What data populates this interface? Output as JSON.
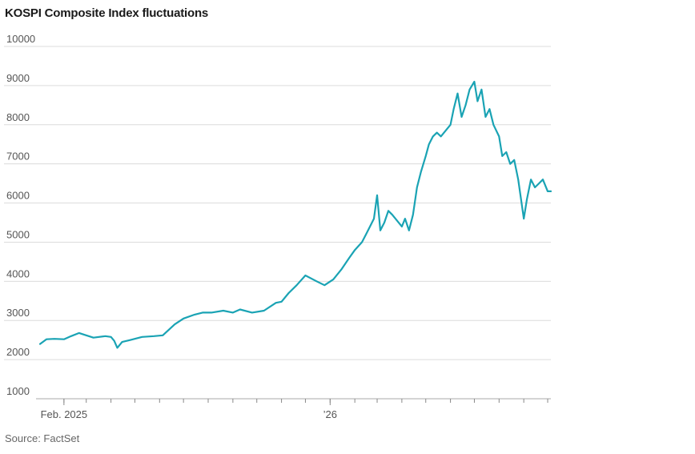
{
  "title": "KOSPI Composite Index fluctuations",
  "source": "Source: FactSet",
  "colors": {
    "line": "#1aa3b4",
    "grid": "#dcdcdc"
  },
  "chart_data": {
    "type": "line",
    "title": "KOSPI Composite Index fluctuations",
    "xlabel": "",
    "ylabel": "",
    "ylim": [
      1000,
      10000
    ],
    "yticks": [
      1000,
      2000,
      3000,
      4000,
      5000,
      6000,
      7000,
      8000,
      9000,
      10000
    ],
    "ytick_labels": [
      "1000",
      "2000",
      "3000",
      "4000",
      "5000",
      "6000",
      "7000",
      "8000",
      "9000",
      "10000"
    ],
    "xlim": [
      "2025-01-02",
      "2026-10-05"
    ],
    "xtick_labels": [
      {
        "date": "2025-02-01",
        "label": "Feb. 2025"
      },
      {
        "date": "2026-01-01",
        "label": "’26"
      }
    ],
    "month_ticks": [
      "2025-02-01",
      "2025-03-01",
      "2025-04-01",
      "2025-05-01",
      "2025-06-01",
      "2025-07-01",
      "2025-08-01",
      "2025-09-01",
      "2025-10-01",
      "2025-11-01",
      "2025-12-01",
      "2026-01-01",
      "2026-02-01",
      "2026-03-01",
      "2026-04-01",
      "2026-05-01",
      "2026-06-01",
      "2026-07-01",
      "2026-08-01",
      "2026-09-01",
      "2026-10-01"
    ],
    "grid": true,
    "series": [
      {
        "x": [
          "2025-01-02",
          "2025-01-10",
          "2025-01-20",
          "2025-02-01",
          "2025-02-10",
          "2025-02-20",
          "2025-03-01",
          "2025-03-10",
          "2025-03-25",
          "2025-04-01",
          "2025-04-05",
          "2025-04-09",
          "2025-04-15",
          "2025-04-25",
          "2025-05-10",
          "2025-05-25",
          "2025-06-05",
          "2025-06-20",
          "2025-07-01",
          "2025-07-15",
          "2025-07-25",
          "2025-08-05",
          "2025-08-20",
          "2025-09-01",
          "2025-09-10",
          "2025-09-25",
          "2025-10-10",
          "2025-10-25",
          "2025-11-01",
          "2025-11-10",
          "2025-11-20",
          "2025-12-01",
          "2025-12-15",
          "2025-12-25",
          "2026-01-05",
          "2026-01-15",
          "2026-01-25",
          "2026-02-01",
          "2026-02-10",
          "2026-02-15",
          "2026-02-20",
          "2026-02-25",
          "2026-03-01",
          "2026-03-05",
          "2026-03-10",
          "2026-03-15",
          "2026-03-20",
          "2026-04-01",
          "2026-04-05",
          "2026-04-10",
          "2026-04-15",
          "2026-04-20",
          "2026-04-25",
          "2026-05-01",
          "2026-05-05",
          "2026-05-10",
          "2026-05-15",
          "2026-05-20",
          "2026-06-01",
          "2026-06-05",
          "2026-06-10",
          "2026-06-15",
          "2026-06-20",
          "2026-06-25",
          "2026-07-01",
          "2026-07-05",
          "2026-07-10",
          "2026-07-15",
          "2026-07-20",
          "2026-07-25",
          "2026-08-01",
          "2026-08-05",
          "2026-08-10",
          "2026-08-15",
          "2026-08-20",
          "2026-08-25",
          "2026-09-01",
          "2026-09-05",
          "2026-09-10",
          "2026-09-15",
          "2026-09-20",
          "2026-09-25",
          "2026-10-01",
          "2026-10-05"
        ],
        "y": [
          2400,
          2520,
          2530,
          2520,
          2600,
          2680,
          2620,
          2560,
          2600,
          2580,
          2480,
          2300,
          2450,
          2500,
          2580,
          2600,
          2620,
          2900,
          3050,
          3150,
          3200,
          3200,
          3250,
          3200,
          3280,
          3200,
          3250,
          3450,
          3480,
          3700,
          3900,
          4150,
          4000,
          3900,
          4050,
          4300,
          4600,
          4800,
          5000,
          5200,
          5400,
          5600,
          6200,
          5300,
          5500,
          5800,
          5700,
          5400,
          5600,
          5300,
          5700,
          6400,
          6800,
          7200,
          7500,
          7700,
          7800,
          7700,
          8000,
          8400,
          8800,
          8200,
          8500,
          8900,
          9100,
          8600,
          8900,
          8200,
          8400,
          8000,
          7700,
          7200,
          7300,
          7000,
          7100,
          6600,
          5600,
          6100,
          6600,
          6400,
          6500,
          6600,
          6300,
          6300
        ]
      }
    ]
  }
}
